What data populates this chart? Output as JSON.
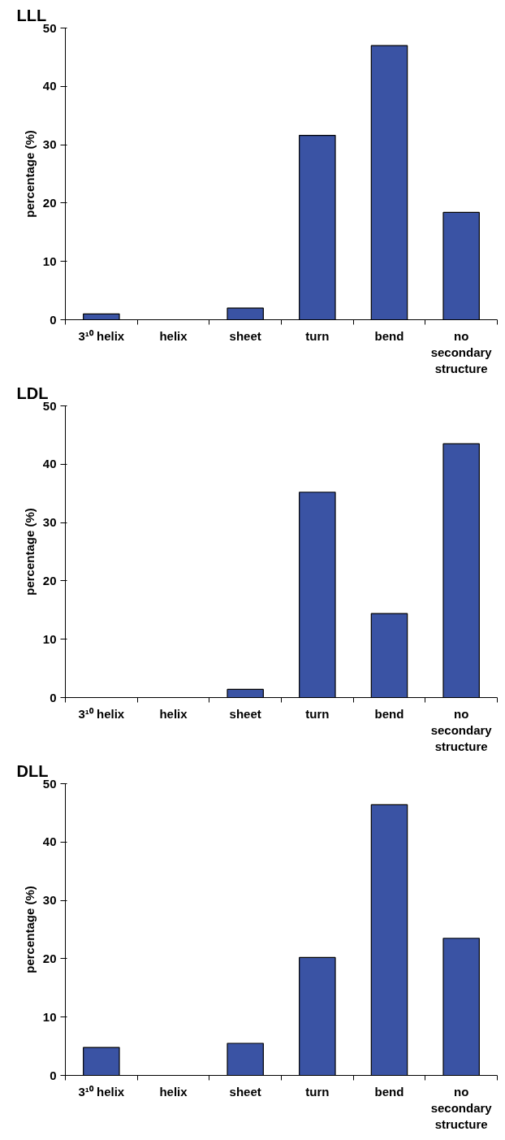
{
  "chart_data": [
    {
      "type": "bar",
      "title": "LLL",
      "ylabel": "percentage (%)",
      "categories": [
        "3¹⁰ helix",
        "helix",
        "sheet",
        "turn",
        "bend",
        "no\nsecondary\nstructure"
      ],
      "values": [
        1.0,
        0,
        2.0,
        31.6,
        47.0,
        18.4
      ],
      "color": "#3a53a4",
      "ylim": [
        0,
        50
      ],
      "yticks": [
        0,
        10,
        20,
        30,
        40,
        50
      ],
      "grid": false
    },
    {
      "type": "bar",
      "title": "LDL",
      "ylabel": "percentage (%)",
      "categories": [
        "3¹⁰ helix",
        "helix",
        "sheet",
        "turn",
        "bend",
        "no\nsecondary\nstructure"
      ],
      "values": [
        0,
        0,
        1.4,
        35.2,
        14.4,
        43.5
      ],
      "color": "#3a53a4",
      "ylim": [
        0,
        50
      ],
      "yticks": [
        0,
        10,
        20,
        30,
        40,
        50
      ],
      "grid": false
    },
    {
      "type": "bar",
      "title": "DLL",
      "ylabel": "percentage (%)",
      "categories": [
        "3¹⁰ helix",
        "helix",
        "sheet",
        "turn",
        "bend",
        "no\nsecondary\nstructure"
      ],
      "values": [
        4.8,
        0,
        5.5,
        20.2,
        46.4,
        23.5
      ],
      "color": "#3a53a4",
      "ylim": [
        0,
        50
      ],
      "yticks": [
        0,
        10,
        20,
        30,
        40,
        50
      ],
      "grid": false
    }
  ]
}
